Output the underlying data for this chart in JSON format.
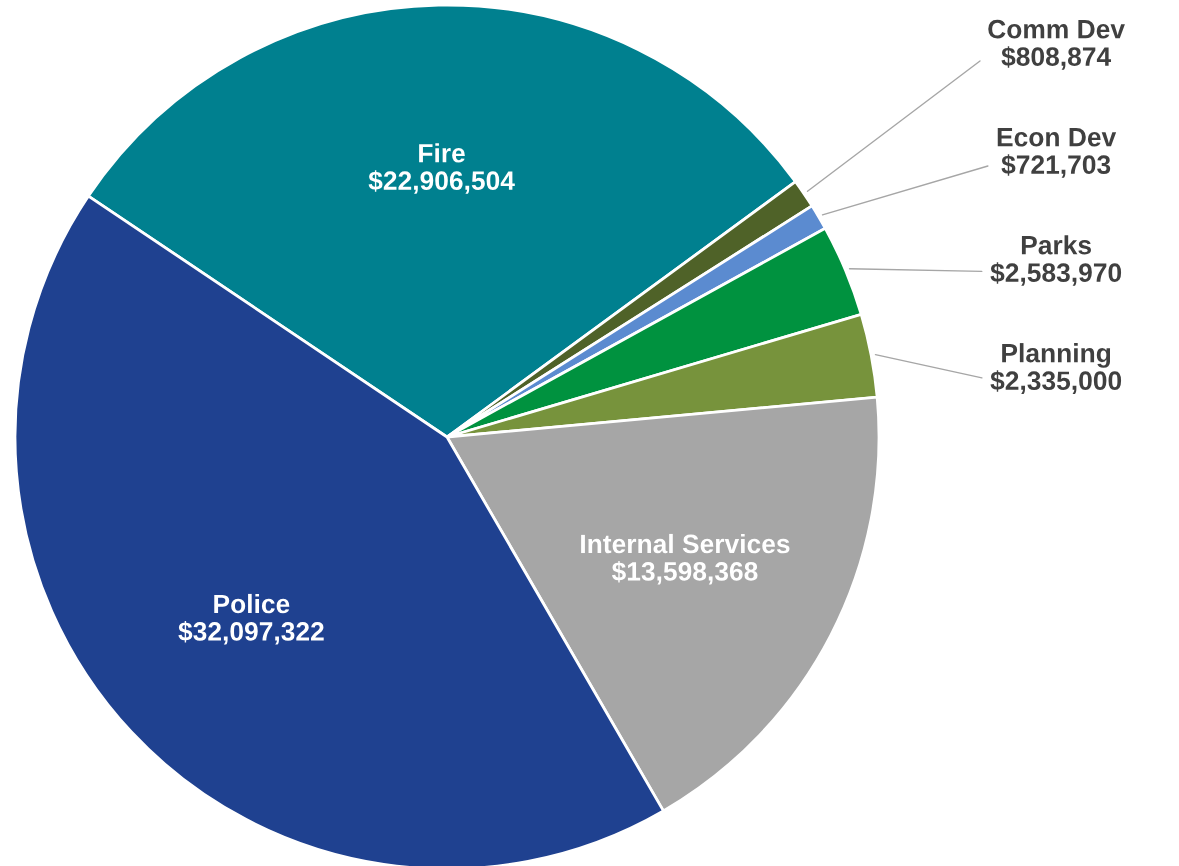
{
  "chart_data": {
    "type": "pie",
    "categories": [
      "Fire",
      "Comm Dev",
      "Econ Dev",
      "Parks",
      "Planning",
      "Internal Services",
      "Police"
    ],
    "values": [
      22906504,
      808874,
      721703,
      2583970,
      2335000,
      13598368,
      32097322
    ],
    "colors": [
      "#00808f",
      "#4f6228",
      "#5b8bd0",
      "#00923f",
      "#77933c",
      "#a6a6a6",
      "#1f4190"
    ],
    "value_labels": [
      "$22,906,504",
      "$808,874",
      "$721,703",
      "$2,583,970",
      "$2,335,000",
      "$13,598,368",
      "$32,097,322"
    ],
    "legend": false
  }
}
